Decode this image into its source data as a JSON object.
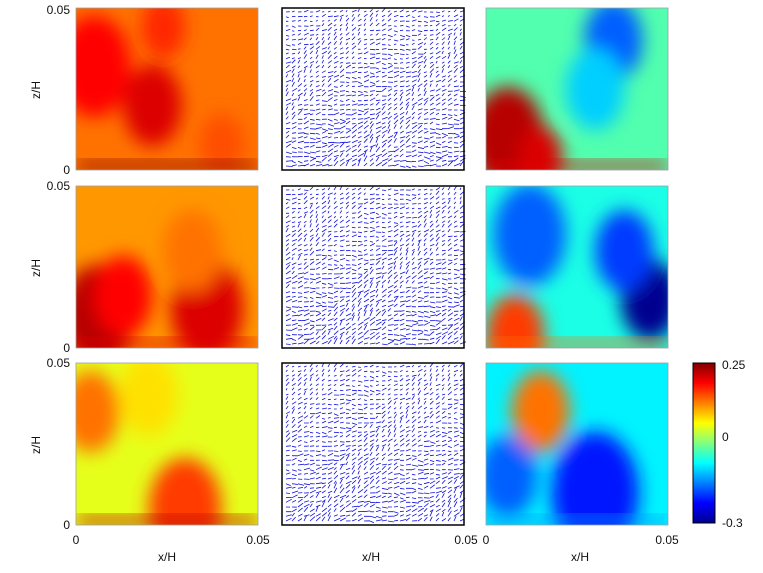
{
  "chart_data": {
    "type": "heatmap",
    "layout": {
      "rows": 3,
      "columns": 3
    },
    "column_kinds": [
      "scalar-field",
      "velocity-vectors",
      "scalar-field"
    ],
    "x_range": [
      0,
      0.05
    ],
    "z_range": [
      0,
      0.05
    ],
    "x_ticks": [
      "0",
      "0.05"
    ],
    "z_ticks": [
      "0",
      "0.05"
    ],
    "x_tick_label_right_column": "0.05",
    "xlabel": "x/H",
    "ylabel": "z/H",
    "colormap": "jet",
    "colormap_stops": [
      "#00008f",
      "#0000ff",
      "#0080ff",
      "#00ffff",
      "#80ff80",
      "#ffff00",
      "#ff8000",
      "#ff0000",
      "#800000"
    ],
    "colorbar": {
      "min": -0.3,
      "max": 0.25,
      "ticks": [
        "0.25",
        "0",
        "-0.3"
      ],
      "tick_values": [
        0.25,
        0,
        -0.3
      ]
    },
    "vector_color": "#1010e0",
    "panels": [
      {
        "row": 1,
        "col": 1,
        "kind": "scalar",
        "mean_value": 0.12,
        "near_wall_value": 0.25,
        "features": [
          [
            0.005,
            0.032,
            0.18,
            0.01
          ],
          [
            0.021,
            0.02,
            0.2,
            0.008
          ],
          [
            0.024,
            0.044,
            0.16,
            0.006
          ],
          [
            0.04,
            0.008,
            0.14,
            0.006
          ]
        ]
      },
      {
        "row": 1,
        "col": 2,
        "kind": "vectors",
        "density": "high near wall"
      },
      {
        "row": 1,
        "col": 3,
        "kind": "scalar",
        "mean_value": -0.05,
        "near_wall_value": 0.2,
        "features": [
          [
            0.006,
            0.01,
            0.22,
            0.01
          ],
          [
            0.015,
            0.004,
            0.2,
            0.006
          ],
          [
            0.035,
            0.04,
            -0.18,
            0.008
          ],
          [
            0.03,
            0.025,
            -0.12,
            0.008
          ]
        ]
      },
      {
        "row": 2,
        "col": 1,
        "kind": "scalar",
        "mean_value": 0.1,
        "near_wall_value": 0.2,
        "features": [
          [
            0.006,
            0.01,
            0.22,
            0.01
          ],
          [
            0.013,
            0.016,
            0.18,
            0.008
          ],
          [
            0.036,
            0.012,
            0.2,
            0.01
          ],
          [
            0.032,
            0.03,
            0.12,
            0.008
          ]
        ]
      },
      {
        "row": 2,
        "col": 2,
        "kind": "vectors",
        "density": "high near wall"
      },
      {
        "row": 2,
        "col": 3,
        "kind": "scalar",
        "mean_value": -0.08,
        "near_wall_value": 0.12,
        "features": [
          [
            0.008,
            0.004,
            0.15,
            0.008
          ],
          [
            0.045,
            0.015,
            -0.3,
            0.008
          ],
          [
            0.038,
            0.03,
            -0.2,
            0.008
          ],
          [
            0.012,
            0.035,
            -0.18,
            0.01
          ]
        ]
      },
      {
        "row": 3,
        "col": 1,
        "kind": "scalar",
        "mean_value": 0.03,
        "near_wall_value": 0.22,
        "features": [
          [
            0.004,
            0.035,
            0.12,
            0.008
          ],
          [
            0.02,
            0.04,
            0.06,
            0.008
          ],
          [
            0.03,
            0.005,
            0.15,
            0.01
          ]
        ]
      },
      {
        "row": 3,
        "col": 2,
        "kind": "vectors",
        "density": "high near wall"
      },
      {
        "row": 3,
        "col": 3,
        "kind": "scalar",
        "mean_value": -0.1,
        "near_wall_value": -0.15,
        "features": [
          [
            0.018,
            0.038,
            0.22,
            0.004
          ],
          [
            0.015,
            0.035,
            0.12,
            0.008
          ],
          [
            0.03,
            0.01,
            -0.22,
            0.012
          ],
          [
            0.006,
            0.015,
            -0.18,
            0.008
          ]
        ]
      }
    ]
  }
}
